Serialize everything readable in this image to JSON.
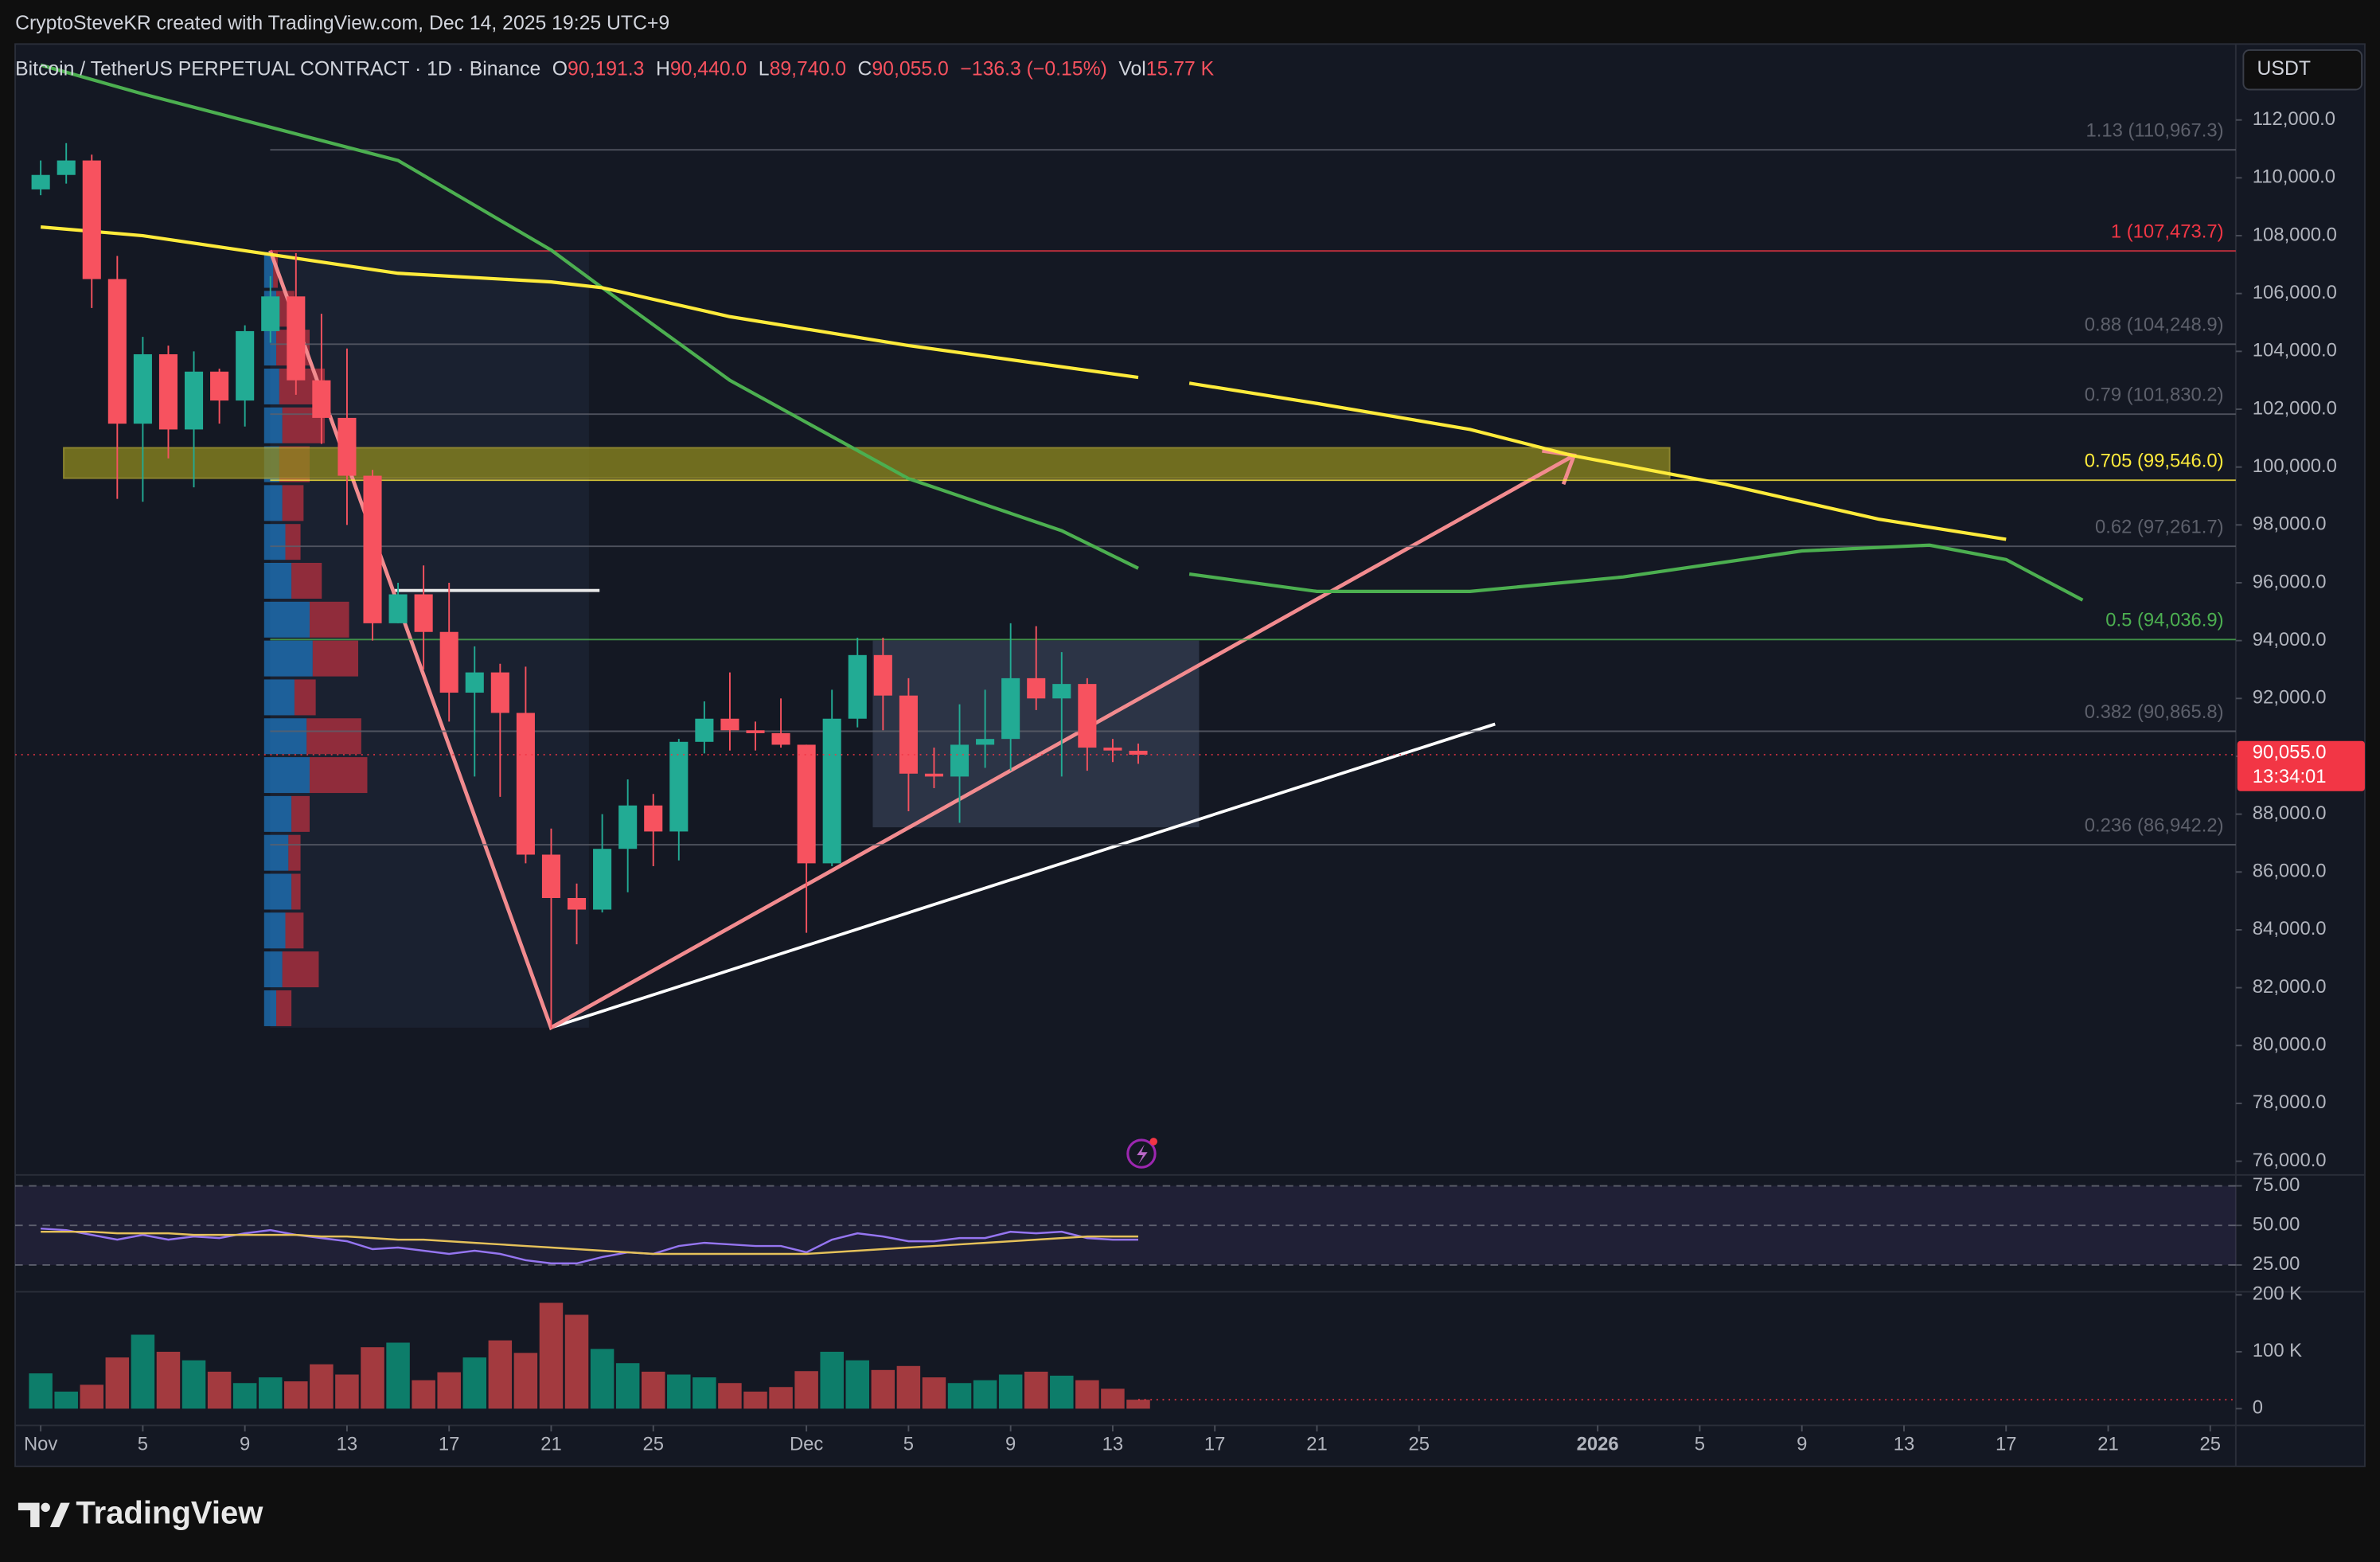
{
  "header": {
    "credit": "CryptoSteveKR created with TradingView.com, Dec 14, 2025 19:25 UTC+9",
    "currency": "USDT",
    "brand": "TradingView"
  },
  "legend": {
    "symbol": "Bitcoin / TetherUS PERPETUAL CONTRACT · 1D · Binance",
    "open_label": "O",
    "open": "90,191.3",
    "high_label": "H",
    "high": "90,440.0",
    "low_label": "L",
    "low": "89,740.0",
    "close_label": "C",
    "close": "90,055.0",
    "change": "−136.3 (−0.15%)",
    "volume_label": "Vol",
    "volume": "15.77 K"
  },
  "chart_data": [
    {
      "type": "candlestick",
      "x": [
        "2025-11-01",
        "2025-11-02",
        "2025-11-03",
        "2025-11-04",
        "2025-11-05",
        "2025-11-06",
        "2025-11-07",
        "2025-11-08",
        "2025-11-09",
        "2025-11-10",
        "2025-11-11",
        "2025-11-12",
        "2025-11-13",
        "2025-11-14",
        "2025-11-15",
        "2025-11-16",
        "2025-11-17",
        "2025-11-18",
        "2025-11-19",
        "2025-11-20",
        "2025-11-21",
        "2025-11-22",
        "2025-11-23",
        "2025-11-24",
        "2025-11-25",
        "2025-11-26",
        "2025-11-27",
        "2025-11-28",
        "2025-11-29",
        "2025-11-30",
        "2025-12-01",
        "2025-12-02",
        "2025-12-03",
        "2025-12-04",
        "2025-12-05",
        "2025-12-06",
        "2025-12-07",
        "2025-12-08",
        "2025-12-09",
        "2025-12-10",
        "2025-12-11",
        "2025-12-12",
        "2025-12-13",
        "2025-12-14"
      ],
      "open": [
        109600,
        110100,
        110600,
        106500,
        101500,
        103900,
        101300,
        103300,
        102300,
        104700,
        105900,
        103000,
        101700,
        99700,
        94600,
        95600,
        94300,
        92200,
        92900,
        91500,
        86600,
        85100,
        84700,
        86800,
        88300,
        87400,
        90500,
        91300,
        90900,
        90800,
        90400,
        86300,
        91300,
        93500,
        92100,
        89400,
        89300,
        90400,
        90600,
        92700,
        92000,
        92500,
        90300,
        90191.3
      ],
      "high": [
        110600,
        111200,
        110800,
        107300,
        104500,
        104200,
        104000,
        103400,
        104900,
        106600,
        107400,
        105300,
        104100,
        99900,
        96000,
        96600,
        96000,
        93800,
        93200,
        93100,
        87500,
        85600,
        88000,
        89200,
        88700,
        90600,
        91900,
        92900,
        91200,
        92000,
        90400,
        92300,
        94100,
        94100,
        92700,
        90300,
        91800,
        92300,
        94600,
        94500,
        93600,
        92700,
        90600,
        90440
      ],
      "low": [
        109400,
        109800,
        105500,
        98900,
        98800,
        100300,
        99300,
        101500,
        101400,
        104300,
        102500,
        100800,
        98000,
        94000,
        94600,
        93000,
        91200,
        89300,
        88600,
        86300,
        80600,
        83500,
        84600,
        85300,
        86200,
        86400,
        90100,
        90200,
        90200,
        90300,
        83900,
        86200,
        91000,
        90900,
        88100,
        88900,
        87700,
        89600,
        89500,
        91600,
        89300,
        89500,
        89800,
        89740
      ],
      "close": [
        110100,
        110600,
        106500,
        101500,
        103900,
        101300,
        103300,
        102300,
        104700,
        105900,
        103000,
        101700,
        99700,
        94600,
        95600,
        94300,
        92200,
        92900,
        91500,
        86600,
        85100,
        84700,
        86800,
        88300,
        87400,
        90500,
        91300,
        90900,
        90800,
        90400,
        86300,
        91300,
        93500,
        92100,
        89400,
        89300,
        90400,
        90600,
        92700,
        92000,
        92500,
        90300,
        90200,
        90055
      ],
      "up_color": "#22ab94",
      "down_color": "#f7525f",
      "xlim": [
        "2025-10-31",
        "2026-01-26"
      ],
      "xticks": [
        {
          "value": "2025-11-01",
          "label": "Nov"
        },
        {
          "value": "2025-11-05",
          "label": "5"
        },
        {
          "value": "2025-11-09",
          "label": "9"
        },
        {
          "value": "2025-11-13",
          "label": "13"
        },
        {
          "value": "2025-11-17",
          "label": "17"
        },
        {
          "value": "2025-11-21",
          "label": "21"
        },
        {
          "value": "2025-11-25",
          "label": "25"
        },
        {
          "value": "2025-12-01",
          "label": "Dec"
        },
        {
          "value": "2025-12-05",
          "label": "5"
        },
        {
          "value": "2025-12-09",
          "label": "9"
        },
        {
          "value": "2025-12-13",
          "label": "13"
        },
        {
          "value": "2025-12-17",
          "label": "17"
        },
        {
          "value": "2025-12-21",
          "label": "21"
        },
        {
          "value": "2025-12-25",
          "label": "25"
        },
        {
          "value": "2026-01-01",
          "label": "2026"
        },
        {
          "value": "2026-01-05",
          "label": "5"
        },
        {
          "value": "2026-01-09",
          "label": "9"
        },
        {
          "value": "2026-01-13",
          "label": "13"
        },
        {
          "value": "2026-01-17",
          "label": "17"
        },
        {
          "value": "2026-01-21",
          "label": "21"
        },
        {
          "value": "2026-01-25",
          "label": "25"
        }
      ],
      "ylim": [
        75600,
        114600
      ],
      "yticks": [
        {
          "value": 76000,
          "label": "76,000.0"
        },
        {
          "value": 78000,
          "label": "78,000.0"
        },
        {
          "value": 80000,
          "label": "80,000.0"
        },
        {
          "value": 82000,
          "label": "82,000.0"
        },
        {
          "value": 84000,
          "label": "84,000.0"
        },
        {
          "value": 86000,
          "label": "86,000.0"
        },
        {
          "value": 88000,
          "label": "88,000.0"
        },
        {
          "value": 90000,
          "label": "90,000.0"
        },
        {
          "value": 92000,
          "label": "92,000.0"
        },
        {
          "value": 94000,
          "label": "94,000.0"
        },
        {
          "value": 96000,
          "label": "96,000.0"
        },
        {
          "value": 98000,
          "label": "98,000.0"
        },
        {
          "value": 100000,
          "label": "100,000.0"
        },
        {
          "value": 102000,
          "label": "102,000.0"
        },
        {
          "value": 104000,
          "label": "104,000.0"
        },
        {
          "value": 106000,
          "label": "106,000.0"
        },
        {
          "value": 108000,
          "label": "108,000.0"
        },
        {
          "value": 110000,
          "label": "110,000.0"
        },
        {
          "value": 112000,
          "label": "112,000.0"
        }
      ],
      "grid": false,
      "series": [
        {
          "color": "#4caf50",
          "x": [
            "2025-11-01",
            "2025-11-05",
            "2025-11-15",
            "2025-11-21",
            "2025-11-23",
            "2025-11-28",
            "2025-12-05",
            "2025-12-11",
            "2025-12-14",
            "2025-12-15",
            "2025-12-16",
            "2025-12-21",
            "2025-12-27",
            "2026-01-02",
            "2026-01-09",
            "2026-01-14",
            "2026-01-17",
            "2026-01-20"
          ],
          "values": [
            113900,
            112900,
            110600,
            107500,
            106200,
            103000,
            99600,
            97800,
            96500,
            null,
            96300,
            95700,
            95700,
            96200,
            97100,
            97300,
            96800,
            95400
          ]
        },
        {
          "color": "#ffeb3b",
          "x": [
            "2025-11-01",
            "2025-11-05",
            "2025-11-15",
            "2025-11-21",
            "2025-11-23",
            "2025-11-28",
            "2025-12-05",
            "2025-12-14",
            "2025-12-15",
            "2025-12-16",
            "2025-12-21",
            "2025-12-27",
            "2025-12-31",
            "2026-01-06",
            "2026-01-12",
            "2026-01-17"
          ],
          "values": [
            108300,
            108000,
            106700,
            106400,
            106200,
            105200,
            104200,
            103100,
            null,
            102900,
            102200,
            101300,
            100400,
            99400,
            98200,
            97500
          ]
        }
      ],
      "levels": [
        {
          "label": "1.13 (110,967.3)",
          "value": 110967.3,
          "color": "#5d606b"
        },
        {
          "label": "1 (107,473.7)",
          "value": 107473.7,
          "color": "#f23645"
        },
        {
          "label": "0.88 (104,248.9)",
          "value": 104248.9,
          "color": "#5d606b"
        },
        {
          "label": "0.79 (101,830.2)",
          "value": 101830.2,
          "color": "#5d606b"
        },
        {
          "label": "0.705 (99,546.0)",
          "value": 99546,
          "color": "#ffeb3b"
        },
        {
          "label": "0.62 (97,261.7)",
          "value": 97261.7,
          "color": "#5d606b"
        },
        {
          "label": "0.5 (94,036.9)",
          "value": 94036.9,
          "color": "#4caf50"
        },
        {
          "label": "0.382 (90,865.8)",
          "value": 90865.8,
          "color": "#5d606b"
        },
        {
          "label": "0.236 (86,942.2)",
          "value": 86942.2,
          "color": "#5d606b"
        }
      ],
      "price_tag": {
        "value": 90055,
        "label": "90,055.0",
        "countdown": "13:34:01",
        "color": "#f23645"
      }
    },
    {
      "type": "line",
      "series": [
        {
          "color": "#9575f0",
          "values": [
            48,
            47,
            44,
            41,
            44,
            41,
            43,
            42,
            45,
            47,
            44,
            42,
            40,
            35,
            36,
            34,
            32,
            34,
            32,
            28,
            26,
            26,
            30,
            33,
            32,
            37,
            39,
            38,
            37,
            37,
            33,
            41,
            45,
            43,
            40,
            40,
            42,
            42,
            46,
            45,
            46,
            42,
            41,
            41
          ]
        },
        {
          "color": "#e5c15a",
          "values": [
            46,
            46,
            46,
            45,
            45,
            45,
            44,
            44,
            44,
            44,
            44,
            43,
            43,
            42,
            41,
            41,
            40,
            39,
            38,
            37,
            36,
            35,
            34,
            33,
            32,
            32,
            32,
            32,
            32,
            32,
            32,
            33,
            34,
            35,
            36,
            37,
            38,
            39,
            40,
            41,
            42,
            43,
            43,
            43
          ]
        }
      ],
      "ylim": [
        9,
        80
      ],
      "yticks": [
        {
          "value": 25,
          "label": "25.00"
        },
        {
          "value": 50,
          "label": "50.00"
        },
        {
          "value": 75,
          "label": "75.00"
        }
      ],
      "band_color": "#7e57c2"
    },
    {
      "type": "bar",
      "values": [
        62000,
        30000,
        42000,
        90000,
        130000,
        100000,
        85000,
        65000,
        45000,
        55000,
        48000,
        78000,
        60000,
        108000,
        116000,
        50000,
        64000,
        90000,
        120000,
        98000,
        186000,
        165000,
        105000,
        80000,
        65000,
        60000,
        55000,
        45000,
        30000,
        38000,
        66000,
        100000,
        85000,
        68000,
        75000,
        55000,
        45000,
        50000,
        60000,
        65000,
        58000,
        50000,
        35000,
        15770
      ],
      "ylim": [
        -26700,
        202700
      ],
      "yticks": [
        0,
        {
          "value": 100000,
          "label": "100 K"
        },
        {
          "value": 200000,
          "label": "200 K"
        }
      ],
      "up_color": "#0d7d6a",
      "down_color": "#a33a3f"
    }
  ]
}
